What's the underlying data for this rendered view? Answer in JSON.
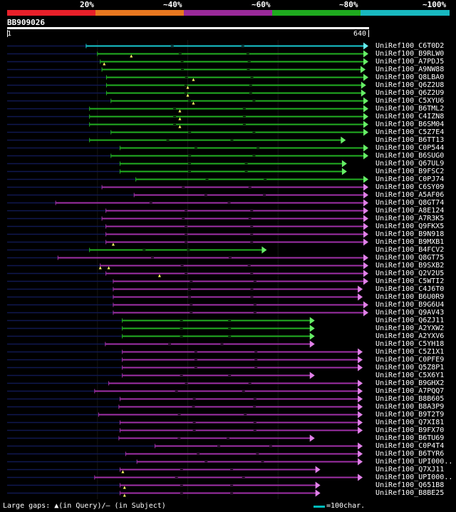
{
  "scale": {
    "labels": [
      "20%",
      "~40%",
      "~60%",
      "~80%",
      "~100%"
    ],
    "segments": [
      {
        "label": "20%",
        "color": "#e8202a"
      },
      {
        "label": "~40%",
        "color": "#e87820"
      },
      {
        "label": "~60%",
        "color": "#9a2a9a"
      },
      {
        "label": "~80%",
        "color": "#1faa1f"
      },
      {
        "label": "~100%",
        "color": "#18b8c0"
      }
    ]
  },
  "query": {
    "id": "BB909026",
    "length": 640,
    "start_label": "1",
    "end_label": "640"
  },
  "colors": {
    "hsp_cyan": "#18c8d0",
    "hsp_green": "#22b022",
    "hsp_purple": "#a030a8",
    "arrow_green": "#66ee66",
    "arrow_purple": "#e080e8",
    "arrow_cyan": "#66eeee",
    "dim_line": "#101850",
    "gap_marker": "#ffff66"
  },
  "hits": [
    {
      "name": "UniRef100_C6T0D2",
      "color": "cyan",
      "start": 140,
      "end": 640,
      "dim_start": 0,
      "gaps": []
    },
    {
      "name": "UniRef100_B9RLW0",
      "color": "green",
      "start": 160,
      "end": 640,
      "gaps": [
        220
      ]
    },
    {
      "name": "UniRef100_A7PDJ5",
      "color": "green",
      "start": 165,
      "end": 640,
      "gaps": [
        172
      ]
    },
    {
      "name": "UniRef100_A9NW88",
      "color": "green",
      "start": 168,
      "end": 635,
      "gaps": []
    },
    {
      "name": "UniRef100_Q8LBA0",
      "color": "green",
      "start": 176,
      "end": 640,
      "gaps": [
        330
      ]
    },
    {
      "name": "UniRef100_Q6Z2U8",
      "color": "green",
      "start": 176,
      "end": 636,
      "gaps": [
        320
      ]
    },
    {
      "name": "UniRef100_Q6Z2U9",
      "color": "green",
      "start": 176,
      "end": 636,
      "gaps": [
        320
      ]
    },
    {
      "name": "UniRef100_C5XYU6",
      "color": "green",
      "start": 184,
      "end": 640,
      "gaps": [
        330
      ]
    },
    {
      "name": "UniRef100_B6TML2",
      "color": "green",
      "start": 146,
      "end": 640,
      "gaps": [
        306
      ]
    },
    {
      "name": "UniRef100_C4IZN8",
      "color": "green",
      "start": 146,
      "end": 640,
      "gaps": [
        306
      ]
    },
    {
      "name": "UniRef100_B6SM04",
      "color": "green",
      "start": 146,
      "end": 640,
      "gaps": [
        306
      ]
    },
    {
      "name": "UniRef100_C5Z7E4",
      "color": "green",
      "start": 184,
      "end": 640,
      "gaps": []
    },
    {
      "name": "UniRef100_B6TT13",
      "color": "green",
      "start": 146,
      "end": 600,
      "gaps": []
    },
    {
      "name": "UniRef100_C0P544",
      "color": "green",
      "start": 200,
      "end": 640,
      "gaps": []
    },
    {
      "name": "UniRef100_B6SUG0",
      "color": "green",
      "start": 184,
      "end": 640,
      "gaps": []
    },
    {
      "name": "UniRef100_Q67UL9",
      "color": "green",
      "start": 200,
      "end": 602,
      "gaps": []
    },
    {
      "name": "UniRef100_B9FSC2",
      "color": "green",
      "start": 200,
      "end": 602,
      "gaps": []
    },
    {
      "name": "UniRef100_C0PJ74",
      "color": "green",
      "start": 228,
      "end": 640,
      "gaps": []
    },
    {
      "name": "UniRef100_C6SY09",
      "color": "purple",
      "start": 168,
      "end": 640,
      "gaps": []
    },
    {
      "name": "UniRef100_A5AF06",
      "color": "purple",
      "start": 225,
      "end": 640,
      "gaps": []
    },
    {
      "name": "UniRef100_Q8GT74",
      "color": "purple",
      "start": 86,
      "end": 640,
      "gaps": []
    },
    {
      "name": "UniRef100_A8E124",
      "color": "purple",
      "start": 175,
      "end": 640,
      "gaps": []
    },
    {
      "name": "UniRef100_A7R3K5",
      "color": "purple",
      "start": 168,
      "end": 640,
      "gaps": []
    },
    {
      "name": "UniRef100_Q9FKX5",
      "color": "purple",
      "start": 175,
      "end": 640,
      "gaps": []
    },
    {
      "name": "UniRef100_B9N918",
      "color": "purple",
      "start": 175,
      "end": 640,
      "gaps": []
    },
    {
      "name": "UniRef100_B9MXB1",
      "color": "purple",
      "start": 175,
      "end": 640,
      "gaps": [
        188
      ]
    },
    {
      "name": "UniRef100_B4FCV2",
      "color": "green",
      "start": 146,
      "end": 460,
      "gaps": []
    },
    {
      "name": "UniRef100_Q8GT75",
      "color": "purple",
      "start": 90,
      "end": 640,
      "gaps": []
    },
    {
      "name": "UniRef100_B9SXB2",
      "color": "purple",
      "start": 165,
      "end": 640,
      "gaps": [
        165,
        180
      ]
    },
    {
      "name": "UniRef100_Q2V2U5",
      "color": "purple",
      "start": 175,
      "end": 640,
      "gaps": [
        270
      ]
    },
    {
      "name": "UniRef100_C5WTI2",
      "color": "purple",
      "start": 188,
      "end": 640,
      "gaps": []
    },
    {
      "name": "UniRef100_C4J6T0",
      "color": "purple",
      "start": 188,
      "end": 630,
      "gaps": []
    },
    {
      "name": "UniRef100_B6U0R9",
      "color": "purple",
      "start": 188,
      "end": 630,
      "gaps": []
    },
    {
      "name": "UniRef100_B9G6U4",
      "color": "purple",
      "start": 188,
      "end": 640,
      "gaps": []
    },
    {
      "name": "UniRef100_Q9AV43",
      "color": "purple",
      "start": 188,
      "end": 640,
      "gaps": []
    },
    {
      "name": "UniRef100_Q6ZJ11",
      "color": "green",
      "start": 204,
      "end": 545,
      "gaps": []
    },
    {
      "name": "UniRef100_A2YXW2",
      "color": "green",
      "start": 204,
      "end": 545,
      "gaps": []
    },
    {
      "name": "UniRef100_A2YXV6",
      "color": "green",
      "start": 204,
      "end": 545,
      "gaps": []
    },
    {
      "name": "UniRef100_C5YH18",
      "color": "purple",
      "start": 174,
      "end": 545,
      "gaps": []
    },
    {
      "name": "UniRef100_C5Z1X1",
      "color": "purple",
      "start": 204,
      "end": 630,
      "gaps": []
    },
    {
      "name": "UniRef100_C0PFE9",
      "color": "purple",
      "start": 204,
      "end": 630,
      "gaps": []
    },
    {
      "name": "UniRef100_Q5Z8P1",
      "color": "purple",
      "start": 204,
      "end": 630,
      "gaps": []
    },
    {
      "name": "UniRef100_C5X6Y1",
      "color": "purple",
      "start": 204,
      "end": 545,
      "gaps": []
    },
    {
      "name": "UniRef100_B9GHX2",
      "color": "purple",
      "start": 180,
      "end": 630,
      "gaps": []
    },
    {
      "name": "UniRef100_A7PQQ7",
      "color": "purple",
      "start": 155,
      "end": 630,
      "gaps": []
    },
    {
      "name": "UniRef100_B8B605",
      "color": "purple",
      "start": 200,
      "end": 630,
      "gaps": []
    },
    {
      "name": "UniRef100_B8A3P9",
      "color": "purple",
      "start": 198,
      "end": 630,
      "gaps": []
    },
    {
      "name": "UniRef100_B9T2T9",
      "color": "purple",
      "start": 162,
      "end": 630,
      "gaps": []
    },
    {
      "name": "UniRef100_Q7XI81",
      "color": "purple",
      "start": 200,
      "end": 630,
      "gaps": []
    },
    {
      "name": "UniRef100_B9FX70",
      "color": "purple",
      "start": 200,
      "end": 630,
      "gaps": []
    },
    {
      "name": "UniRef100_B6TU69",
      "color": "purple",
      "start": 198,
      "end": 545,
      "gaps": []
    },
    {
      "name": "UniRef100_C0P4T4",
      "color": "purple",
      "start": 262,
      "end": 630,
      "gaps": []
    },
    {
      "name": "UniRef100_B6TYR6",
      "color": "purple",
      "start": 210,
      "end": 630,
      "gaps": []
    },
    {
      "name": "UniRef100_UPI000..",
      "color": "purple",
      "start": 230,
      "end": 630,
      "gaps": []
    },
    {
      "name": "UniRef100_Q7XJ11",
      "color": "purple",
      "start": 200,
      "end": 555,
      "gaps": [
        205
      ]
    },
    {
      "name": "UniRef100_UPI000..",
      "color": "purple",
      "start": 155,
      "end": 630,
      "gaps": []
    },
    {
      "name": "UniRef100_Q651B8",
      "color": "purple",
      "start": 200,
      "end": 555,
      "gaps": [
        208
      ]
    },
    {
      "name": "UniRef100_B8BE25",
      "color": "purple",
      "start": 200,
      "end": 555,
      "gaps": [
        208
      ]
    }
  ],
  "footer": {
    "legend_text": "Large gaps: ▲(in Query)/– (in Subject)",
    "scale_text": "=100char."
  }
}
